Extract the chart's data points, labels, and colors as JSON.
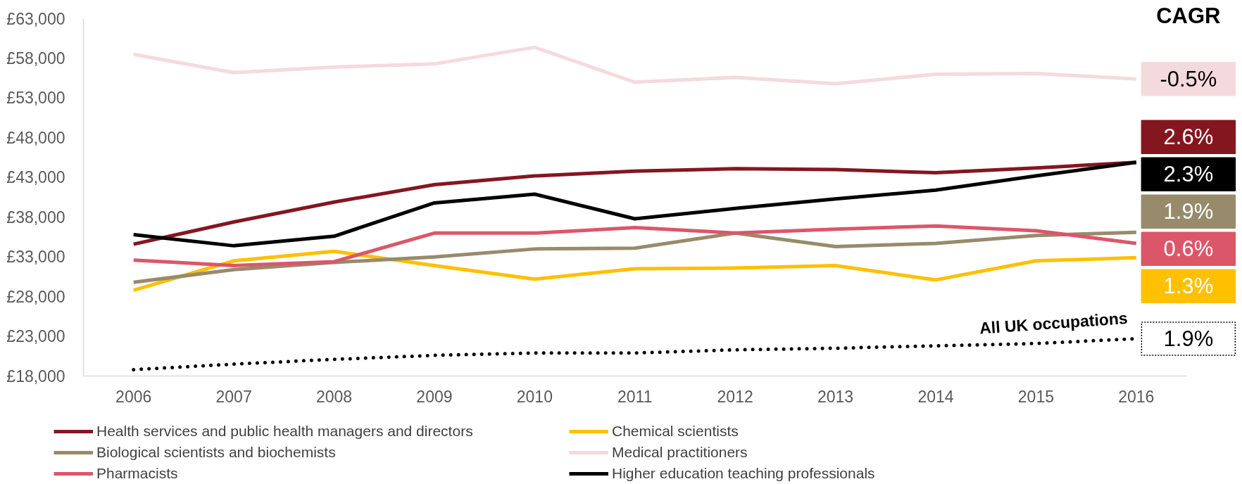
{
  "chart_data": {
    "type": "line",
    "categories": [
      "2006",
      "2007",
      "2008",
      "2009",
      "2010",
      "2011",
      "2012",
      "2013",
      "2014",
      "2015",
      "2016"
    ],
    "ylim": [
      18000,
      63000
    ],
    "yticks": [
      {
        "value": 18000,
        "label": "£18,000"
      },
      {
        "value": 23000,
        "label": "£23,000"
      },
      {
        "value": 28000,
        "label": "£28,000"
      },
      {
        "value": 33000,
        "label": "£33,000"
      },
      {
        "value": 38000,
        "label": "£38,000"
      },
      {
        "value": 43000,
        "label": "£43,000"
      },
      {
        "value": 48000,
        "label": "£48,000"
      },
      {
        "value": 53000,
        "label": "£53,000"
      },
      {
        "value": 58000,
        "label": "£58,000"
      },
      {
        "value": 63000,
        "label": "£63,000"
      }
    ],
    "series": [
      {
        "name": "Health services and public health managers and directors",
        "color": "#841620",
        "values": [
          34600,
          37400,
          39900,
          42100,
          43200,
          43800,
          44100,
          44000,
          43600,
          44200,
          44900
        ]
      },
      {
        "name": "Chemical scientists",
        "color": "#ffc000",
        "values": [
          28800,
          32500,
          33700,
          31900,
          30200,
          31500,
          31600,
          31900,
          30100,
          32500,
          32900
        ]
      },
      {
        "name": "Biological scientists and biochemists",
        "color": "#978b6c",
        "values": [
          29800,
          31400,
          32300,
          33000,
          34000,
          34100,
          36000,
          34300,
          34700,
          35700,
          36100
        ]
      },
      {
        "name": "Medical practitioners",
        "color": "#f5dadd",
        "values": [
          58500,
          56200,
          56900,
          57300,
          59400,
          55000,
          55600,
          54800,
          56000,
          56100,
          55400
        ]
      },
      {
        "name": "Pharmacists",
        "color": "#dc566a",
        "values": [
          32600,
          31900,
          32400,
          36000,
          36000,
          36700,
          36000,
          36500,
          36900,
          36300,
          34700
        ]
      },
      {
        "name": "Higher education teaching professionals",
        "color": "#000000",
        "values": [
          35800,
          34400,
          35600,
          39800,
          40900,
          37800,
          39100,
          40300,
          41400,
          43200,
          44900
        ]
      },
      {
        "color": "#000000",
        "line_style": "dotted",
        "values": [
          18800,
          19500,
          20100,
          20600,
          20900,
          20900,
          21300,
          21500,
          21800,
          22100,
          22700
        ]
      }
    ],
    "annotations": [
      "CAGR",
      {
        "text": "-0.5%",
        "x": "2016",
        "y": 55400
      },
      {
        "text": "2.6%",
        "x": "2016",
        "y": 44900
      },
      {
        "text": "2.3%",
        "x": "2016",
        "y": 44900
      },
      {
        "text": "1.9%",
        "x": "2016",
        "y": 36100
      },
      {
        "text": "0.6%",
        "x": "2016",
        "y": 34700
      },
      {
        "text": "1.3%",
        "x": "2016",
        "y": 32900
      },
      {
        "text": "1.9%",
        "x": "2016",
        "y": 22700
      },
      {
        "text": "All UK occupations",
        "x": "2015",
        "y": 22100
      }
    ],
    "legend": "bottom",
    "line_style": "solid"
  }
}
